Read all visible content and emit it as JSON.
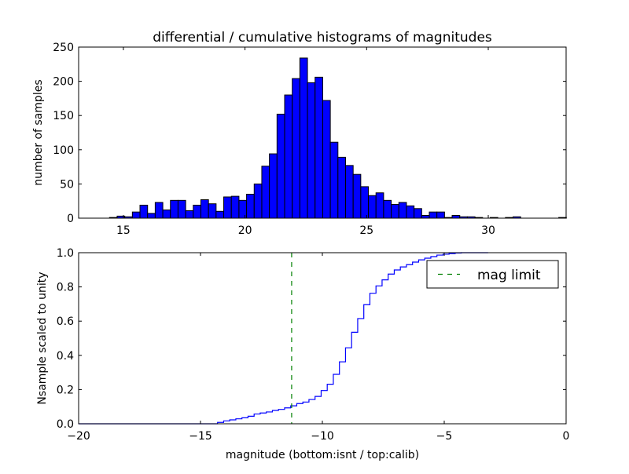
{
  "chart_data": [
    {
      "type": "bar",
      "title": "differential / cumulative histograms of magnitudes",
      "xlabel": "",
      "ylabel": "number of samples",
      "xlim": [
        13.16,
        33.2
      ],
      "ylim": [
        0,
        250
      ],
      "xticks": [
        "15",
        "20",
        "25",
        "30"
      ],
      "xtick_values": [
        15,
        20,
        25,
        30
      ],
      "yticks": [
        "0",
        "50",
        "100",
        "150",
        "200",
        "250"
      ],
      "ytick_values": [
        0,
        50,
        100,
        150,
        200,
        250
      ],
      "bin_start": 14.43,
      "bin_width": 0.313,
      "values": [
        1,
        3,
        2,
        9,
        19,
        7,
        23,
        12,
        26,
        26,
        11,
        19,
        27,
        21,
        10,
        31,
        32,
        26,
        35,
        50,
        76,
        94,
        152,
        180,
        204,
        234,
        198,
        206,
        172,
        111,
        89,
        77,
        64,
        46,
        33,
        37,
        26,
        20,
        23,
        18,
        14,
        4,
        9,
        9,
        1,
        4,
        2,
        2,
        1,
        0,
        1,
        0,
        1,
        2,
        0,
        0,
        0,
        0,
        0,
        1
      ],
      "color": "#0000ff",
      "grid": false
    },
    {
      "type": "line",
      "title": "",
      "xlabel": "magnitude (bottom:isnt / top:calib)",
      "ylabel": "Nsample scaled to unity",
      "xlim": [
        -20,
        0
      ],
      "ylim": [
        0,
        1
      ],
      "xticks": [
        "−20",
        "−15",
        "−10",
        "−5",
        "0"
      ],
      "xtick_values": [
        -20,
        -15,
        -10,
        -5,
        0
      ],
      "yticks": [
        "0.0",
        "0.2",
        "0.4",
        "0.6",
        "0.8",
        "1.0"
      ],
      "ytick_values": [
        0,
        0.2,
        0.4,
        0.6,
        0.8,
        1.0
      ],
      "step_start": -14.3,
      "step_width": 0.25,
      "step_end": -3.2,
      "values": [
        0.008,
        0.017,
        0.023,
        0.029,
        0.035,
        0.044,
        0.057,
        0.063,
        0.069,
        0.078,
        0.084,
        0.093,
        0.105,
        0.118,
        0.127,
        0.142,
        0.16,
        0.194,
        0.231,
        0.289,
        0.362,
        0.444,
        0.535,
        0.615,
        0.696,
        0.763,
        0.806,
        0.841,
        0.875,
        0.899,
        0.917,
        0.93,
        0.945,
        0.958,
        0.968,
        0.977,
        0.986,
        0.991,
        0.995,
        0.998,
        1.0
      ],
      "color": "#0000ff",
      "mag_limit": -11.26,
      "mag_limit_color": "#008000",
      "legend": {
        "label": "mag limit",
        "placement": "top-right"
      },
      "grid": false
    }
  ]
}
